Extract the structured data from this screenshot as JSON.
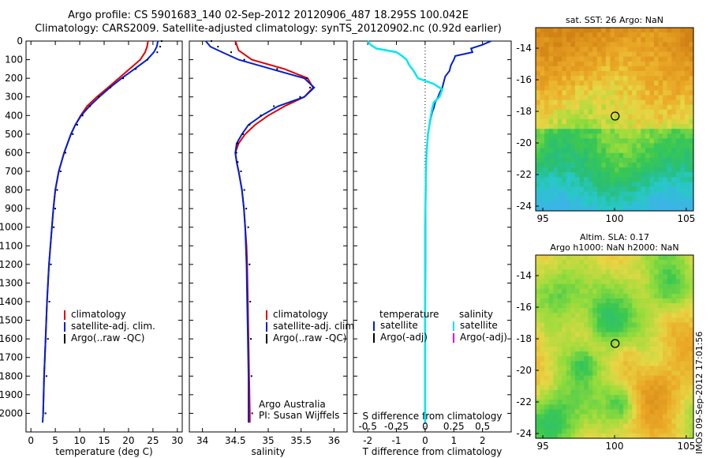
{
  "header": {
    "line1": "Argo profile: CS 5901683_140 02-Sep-2012 20120906_487 18.295S 100.042E",
    "line2": "Climatology: CARS2009. Satellite-adjusted climatology: synTS_20120902.nc (0.92d earlier)"
  },
  "colors": {
    "clim": "#e00000",
    "sat": "#0020d0",
    "argo": "#000000",
    "sal_sat": "#00e8f0",
    "sal_argo": "#e000e0"
  },
  "chart_data": [
    {
      "type": "line",
      "xlabel": "temperature (deg C)",
      "ylabel": "",
      "xlim": [
        -1,
        31
      ],
      "ylim": [
        2100,
        0
      ],
      "xticks": [
        "0",
        "5",
        "10",
        "15",
        "20",
        "25",
        "30"
      ],
      "yticks": [
        "0",
        "100",
        "200",
        "300",
        "400",
        "500",
        "600",
        "700",
        "800",
        "900",
        "1000",
        "1100",
        "1200",
        "1300",
        "1400",
        "1500",
        "1600",
        "1700",
        "1800",
        "1900",
        "2000"
      ],
      "legend": [
        "climatology",
        "satellite-adj. clim.",
        "Argo(..raw -QC)"
      ],
      "legend_position": "lower-center",
      "series": [
        {
          "name": "climatology",
          "depth": [
            0,
            30,
            60,
            100,
            150,
            200,
            250,
            300,
            350,
            400,
            450,
            500,
            600,
            700,
            800,
            900,
            1000,
            1200,
            1400,
            1600,
            1800,
            2000
          ],
          "values": [
            24,
            23.8,
            23.4,
            22.4,
            20.2,
            18,
            15.8,
            13.5,
            11.5,
            10.2,
            9.1,
            8.2,
            6.8,
            5.7,
            5.0,
            4.6,
            4.3,
            3.7,
            3.3,
            3.0,
            2.7,
            2.5
          ]
        },
        {
          "name": "satellite-adj. clim.",
          "depth": [
            0,
            30,
            60,
            100,
            150,
            200,
            250,
            300,
            350,
            400,
            450,
            500,
            600,
            700,
            800,
            900,
            1000,
            1200,
            1400,
            1600,
            1800,
            2000,
            2050
          ],
          "values": [
            26,
            25.8,
            25.2,
            23.8,
            21.2,
            18.6,
            16.2,
            14,
            12,
            10.3,
            9.1,
            8.2,
            6.8,
            5.7,
            5.0,
            4.6,
            4.3,
            3.7,
            3.3,
            3.0,
            2.7,
            2.5,
            2.4
          ]
        },
        {
          "name": "Argo(..raw -QC)",
          "depth": [
            0,
            30,
            60,
            100,
            150,
            200,
            250,
            300,
            350,
            400,
            450,
            500,
            600,
            700,
            800,
            900,
            1000,
            1200,
            1400,
            1600,
            1800,
            2000
          ],
          "values": [
            26.3,
            26,
            25.4,
            23.4,
            21,
            18.4,
            15.8,
            13.4,
            11.6,
            10.1,
            9,
            8.1,
            6.6,
            5.6,
            4.9,
            4.5,
            4.2,
            3.6,
            3.3,
            3.0,
            2.7,
            2.5
          ]
        }
      ]
    },
    {
      "type": "line",
      "xlabel": "salinity",
      "xlim": [
        33.8,
        36.2
      ],
      "ylim": [
        2100,
        0
      ],
      "xticks": [
        "34",
        "34.5",
        "35",
        "35.5",
        "36"
      ],
      "legend": [
        "climatology",
        "satellite-adj. clim.",
        "Argo(..raw -QC)"
      ],
      "legend_position": "lower-center",
      "annotation": [
        "Argo Australia",
        "PI: Susan Wijffels"
      ],
      "series": [
        {
          "name": "climatology",
          "depth": [
            0,
            50,
            100,
            150,
            200,
            250,
            300,
            350,
            400,
            450,
            500,
            550,
            600,
            650,
            700,
            800,
            900,
            1000,
            1100,
            1200,
            1400,
            1600,
            1800,
            2000,
            2050
          ],
          "values": [
            34.5,
            34.55,
            34.75,
            35.25,
            35.6,
            35.68,
            35.55,
            35.25,
            35.0,
            34.8,
            34.65,
            34.55,
            34.5,
            34.52,
            34.55,
            34.6,
            34.63,
            34.65,
            34.67,
            34.68,
            34.69,
            34.7,
            34.71,
            34.72,
            34.72
          ]
        },
        {
          "name": "satellite-adj. clim.",
          "depth": [
            0,
            30,
            60,
            100,
            150,
            200,
            250,
            300,
            350,
            400,
            450,
            500,
            550,
            600,
            650,
            700,
            800,
            900,
            1000,
            1200,
            1400,
            1600,
            1800,
            2000,
            2050
          ],
          "values": [
            34.05,
            34.12,
            34.3,
            34.55,
            35.05,
            35.55,
            35.7,
            35.55,
            35.15,
            34.9,
            34.7,
            34.6,
            34.52,
            34.5,
            34.52,
            34.55,
            34.6,
            34.63,
            34.65,
            34.67,
            34.68,
            34.69,
            34.7,
            34.7,
            34.7
          ]
        },
        {
          "name": "Argo(..raw -QC)",
          "depth": [
            0,
            30,
            60,
            100,
            150,
            200,
            250,
            300,
            350,
            400,
            450,
            500,
            550,
            600,
            650,
            700,
            800,
            900,
            1000,
            1200,
            1400,
            1600,
            1800,
            2000
          ],
          "values": [
            34.1,
            34.2,
            34.4,
            34.6,
            35.1,
            35.55,
            35.6,
            35.45,
            35.05,
            34.85,
            34.68,
            34.58,
            34.5,
            34.48,
            34.5,
            34.55,
            34.6,
            34.63,
            34.66,
            34.68,
            34.69,
            34.7,
            34.71,
            34.72
          ]
        }
      ]
    },
    {
      "type": "line",
      "xlabel": "T difference from climatology",
      "xlabel_top": "S difference from climatology",
      "xlim": [
        -2.5,
        3.0
      ],
      "ylim": [
        2100,
        0
      ],
      "xticks": [
        "-2",
        "-1",
        "0",
        "1",
        "2"
      ],
      "xticks_top": [
        "-0.5",
        "-0.25",
        "0",
        "0.25",
        "0.5"
      ],
      "legend_left": {
        "title": "temperature",
        "items": [
          "satellite",
          "Argo(-adj)"
        ]
      },
      "legend_right": {
        "title": "salinity",
        "items": [
          "satellite",
          "Argo(-adj)"
        ]
      },
      "series": [
        {
          "name": "temperature satellite",
          "depth": [
            0,
            20,
            40,
            60,
            80,
            100,
            130,
            160,
            190,
            220,
            250,
            280,
            300,
            330,
            360,
            380,
            400,
            450,
            500,
            600,
            700,
            800,
            1000,
            1200,
            1500,
            1800,
            2000
          ],
          "values": [
            2.3,
            2.0,
            1.6,
            1.65,
            1.05,
            1.0,
            0.9,
            0.85,
            0.7,
            0.65,
            0.6,
            0.5,
            0.45,
            0.35,
            0.3,
            0.25,
            0.22,
            0.15,
            0.1,
            0.05,
            0.03,
            0.02,
            0.01,
            0.01,
            0,
            0,
            0
          ]
        },
        {
          "name": "salinity satellite",
          "depth": [
            0,
            20,
            40,
            60,
            80,
            100,
            130,
            160,
            200,
            230,
            260,
            280,
            300,
            330,
            360,
            400,
            450,
            500,
            600,
            700,
            800,
            1000,
            1200,
            1500,
            1800,
            2000,
            2050
          ],
          "values": [
            -2.0,
            -1.9,
            -1.7,
            -1.0,
            -0.8,
            -0.65,
            -0.55,
            -0.4,
            -0.25,
            0.3,
            0.6,
            0.55,
            0.5,
            0.3,
            0.25,
            0.2,
            0.15,
            0.1,
            0.05,
            0.03,
            0.02,
            0,
            0,
            0,
            0,
            0,
            0
          ]
        }
      ]
    },
    {
      "type": "heatmap",
      "title": "sat. SST: 26 Argo: NaN",
      "xticks": [
        "95",
        "100",
        "105"
      ],
      "yticks": [
        "-14",
        "-16",
        "-18",
        "-20",
        "-22",
        "-24"
      ],
      "xlim": [
        94.5,
        105.5
      ],
      "ylim": [
        -24.3,
        -12.7
      ],
      "marker": {
        "lon": 100.04,
        "lat": -18.3
      }
    },
    {
      "type": "heatmap",
      "title": "Altim. SLA: 0.17",
      "subtitle": "Argo h1000: NaN h2000: NaN",
      "xticks": [
        "95",
        "100",
        "105"
      ],
      "yticks": [
        "-14",
        "-16",
        "-18",
        "-20",
        "-22",
        "-24"
      ],
      "xlim": [
        94.5,
        105.5
      ],
      "ylim": [
        -24.3,
        -12.7
      ],
      "marker": {
        "lon": 100.04,
        "lat": -18.3
      }
    }
  ],
  "stamp": "IMOS 09-Sep-2012 17:01:56"
}
